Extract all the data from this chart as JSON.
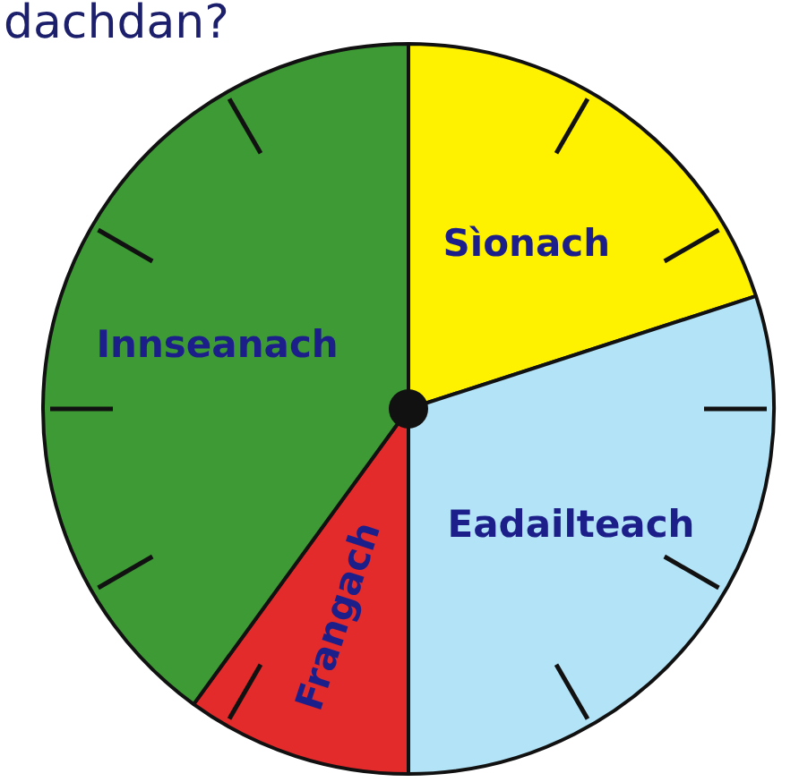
{
  "chart_data": {
    "type": "pie",
    "title": "dachdan?",
    "categories": [
      "Sìonach",
      "Eadailteach",
      "Frangach",
      "Innseanach"
    ],
    "values": [
      20,
      30,
      10,
      40
    ],
    "colors": [
      "#fff200",
      "#b3e3f7",
      "#e32b2b",
      "#3d9a35"
    ]
  }
}
